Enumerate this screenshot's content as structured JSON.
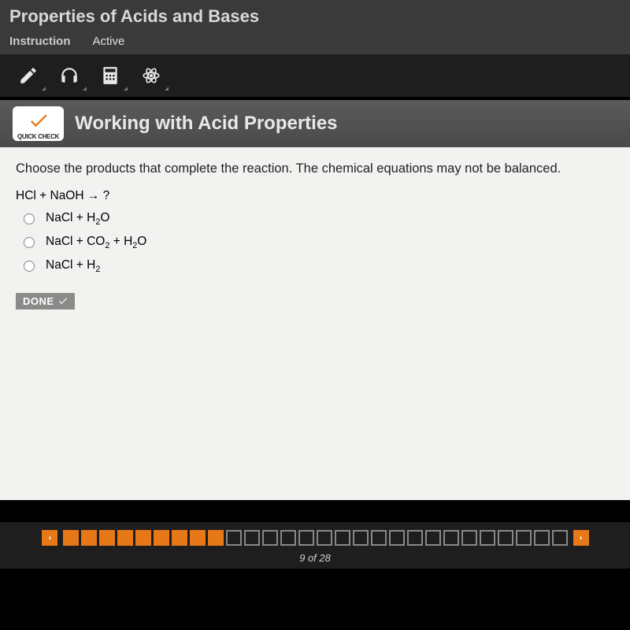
{
  "header": {
    "title": "Properties of Acids and Bases",
    "tabs": [
      {
        "label": "Instruction",
        "active": true
      },
      {
        "label": "Active",
        "active": false
      }
    ]
  },
  "toolbar": {
    "tools": [
      "pencil",
      "headphones",
      "calculator",
      "atom"
    ]
  },
  "section": {
    "badge_label": "QUICK CHECK",
    "title": "Working with Acid Properties"
  },
  "question": {
    "prompt": "Choose the products that complete the reaction. The chemical equations may not be balanced.",
    "equation": "HCl + NaOH → ?",
    "options": [
      {
        "html": "NaCl + H<sub>2</sub>O"
      },
      {
        "html": "NaCl + CO<sub>2</sub> + H<sub>2</sub>O"
      },
      {
        "html": "NaCl + H<sub>2</sub>"
      }
    ],
    "done_label": "DONE"
  },
  "progress": {
    "current": 9,
    "total": 28,
    "label": "9 of 28",
    "cells": [
      "done",
      "done",
      "done",
      "done",
      "done",
      "done",
      "done",
      "done",
      "curr",
      "locked",
      "locked",
      "locked",
      "locked",
      "locked",
      "locked",
      "locked",
      "locked",
      "locked",
      "locked",
      "locked",
      "locked",
      "locked",
      "locked",
      "locked",
      "locked",
      "locked",
      "locked",
      "locked"
    ]
  },
  "colors": {
    "accent": "#e67817",
    "bg_dark": "#1e1e1e",
    "bg_header": "#3a3a3a",
    "content_bg": "#f2f2f0"
  }
}
